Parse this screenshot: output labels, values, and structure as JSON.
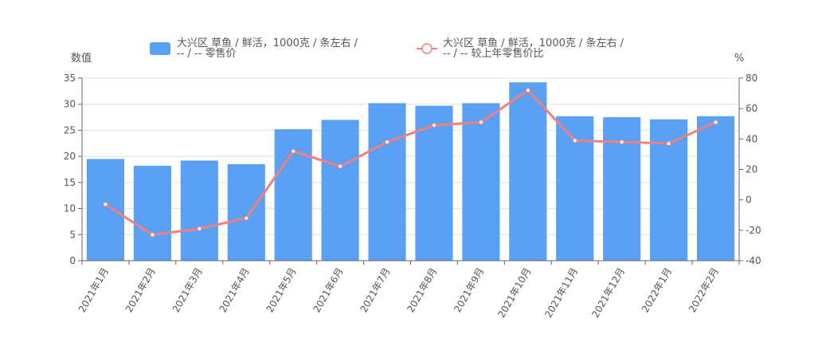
{
  "chart_data": {
    "type": "bar",
    "categories": [
      "2021年1月",
      "2021年2月",
      "2021年3月",
      "2021年4月",
      "2021年5月",
      "2021年6月",
      "2021年7月",
      "2021年8月",
      "2021年9月",
      "2021年10月",
      "2021年11月",
      "2021年12月",
      "2022年1月",
      "2022年2月"
    ],
    "series": [
      {
        "name_lines": [
          "大兴区 草鱼 / 鲜活，1000克 / 条左右 /",
          "-- / -- 零售价"
        ],
        "type": "bar",
        "axis": "left",
        "values": [
          19.5,
          18.2,
          19.2,
          18.5,
          25.2,
          27.0,
          30.2,
          29.7,
          30.2,
          34.2,
          27.7,
          27.5,
          27.1,
          27.7
        ]
      },
      {
        "name_lines": [
          "大兴区 草鱼 / 鲜活，1000克 / 条左右 /",
          "-- / -- 较上年零售价比"
        ],
        "type": "line",
        "axis": "right",
        "values": [
          -3,
          -23,
          -19,
          -12,
          32,
          22,
          38,
          49,
          51,
          72,
          39,
          38,
          37,
          51
        ]
      }
    ],
    "ylabel_left": "数值",
    "ylabel_right": "%",
    "ylim_left": [
      0,
      35
    ],
    "yticks_left": [
      0,
      5,
      10,
      15,
      20,
      25,
      30,
      35
    ],
    "ylim_right": [
      -40,
      80
    ],
    "yticks_right": [
      -40,
      -20,
      0,
      20,
      40,
      60,
      80
    ],
    "grid": true,
    "legend": "top",
    "colors": {
      "bar": "#5aa0f5",
      "line": "#f08080",
      "axis": "#666666",
      "grid": "#e0e0e0",
      "text": "#555555"
    }
  }
}
